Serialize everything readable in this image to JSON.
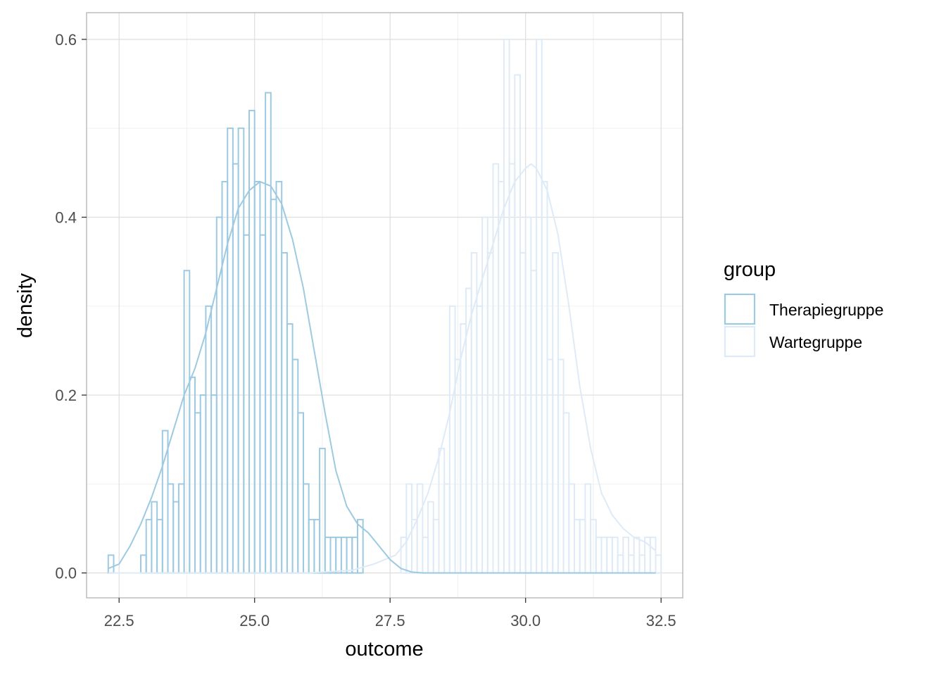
{
  "chart_data": {
    "type": "histogram",
    "xlabel": "outcome",
    "ylabel": "density",
    "xlim": [
      21.9,
      32.9
    ],
    "ylim": [
      -0.028,
      0.63
    ],
    "xticks": [
      22.5,
      25.0,
      27.5,
      30.0,
      32.5
    ],
    "xtick_labels": [
      "22.5",
      "25.0",
      "27.5",
      "30.0",
      "32.5"
    ],
    "yticks": [
      0.0,
      0.2,
      0.4,
      0.6
    ],
    "ytick_labels": [
      "0.0",
      "0.2",
      "0.4",
      "0.6"
    ],
    "grid": true,
    "legend": {
      "title": "group",
      "position": "right"
    },
    "bin_width": 0.1,
    "series": [
      {
        "name": "Therapiegruppe",
        "color": "#9ecae1",
        "bin_start": 22.3,
        "densities": [
          0.02,
          0.0,
          0.0,
          0.0,
          0.0,
          0.0,
          0.02,
          0.06,
          0.08,
          0.06,
          0.16,
          0.1,
          0.08,
          0.1,
          0.34,
          0.22,
          0.18,
          0.2,
          0.3,
          0.2,
          0.4,
          0.44,
          0.5,
          0.46,
          0.5,
          0.38,
          0.52,
          0.44,
          0.38,
          0.54,
          0.42,
          0.44,
          0.36,
          0.28,
          0.24,
          0.18,
          0.1,
          0.06,
          0.06,
          0.14,
          0.04,
          0.04,
          0.04,
          0.04,
          0.04,
          0.04,
          0.06
        ],
        "density_curve": [
          [
            22.3,
            0.005
          ],
          [
            22.5,
            0.01
          ],
          [
            22.7,
            0.03
          ],
          [
            22.9,
            0.055
          ],
          [
            23.1,
            0.085
          ],
          [
            23.3,
            0.12
          ],
          [
            23.5,
            0.16
          ],
          [
            23.7,
            0.2
          ],
          [
            23.9,
            0.23
          ],
          [
            24.1,
            0.27
          ],
          [
            24.3,
            0.32
          ],
          [
            24.5,
            0.37
          ],
          [
            24.7,
            0.41
          ],
          [
            24.9,
            0.43
          ],
          [
            25.1,
            0.44
          ],
          [
            25.3,
            0.435
          ],
          [
            25.5,
            0.415
          ],
          [
            25.7,
            0.375
          ],
          [
            25.9,
            0.32
          ],
          [
            26.1,
            0.25
          ],
          [
            26.3,
            0.18
          ],
          [
            26.5,
            0.115
          ],
          [
            26.7,
            0.075
          ],
          [
            26.9,
            0.055
          ],
          [
            27.1,
            0.045
          ],
          [
            27.3,
            0.03
          ],
          [
            27.5,
            0.015
          ],
          [
            27.7,
            0.005
          ],
          [
            27.9,
            0.001
          ],
          [
            28.1,
            0.0
          ],
          [
            29.0,
            0.0
          ],
          [
            30.0,
            0.0
          ],
          [
            31.0,
            0.0
          ],
          [
            32.0,
            0.0
          ],
          [
            32.4,
            0.0
          ]
        ]
      },
      {
        "name": "Wartegruppe",
        "color": "#deebf7",
        "bin_start": 27.7,
        "densities": [
          0.04,
          0.1,
          0.06,
          0.1,
          0.04,
          0.08,
          0.06,
          0.14,
          0.1,
          0.3,
          0.24,
          0.28,
          0.32,
          0.36,
          0.3,
          0.4,
          0.36,
          0.46,
          0.44,
          0.6,
          0.46,
          0.56,
          0.36,
          0.4,
          0.34,
          0.6,
          0.44,
          0.24,
          0.36,
          0.24,
          0.18,
          0.1,
          0.06,
          0.06,
          0.1,
          0.06,
          0.04,
          0.04,
          0.04,
          0.04,
          0.02,
          0.04,
          0.02,
          0.04,
          0.02,
          0.04,
          0.04,
          0.02
        ],
        "density_curve": [
          [
            22.3,
            0.0
          ],
          [
            24.0,
            0.0
          ],
          [
            26.0,
            0.0
          ],
          [
            26.8,
            0.003
          ],
          [
            27.2,
            0.01
          ],
          [
            27.6,
            0.02
          ],
          [
            27.8,
            0.035
          ],
          [
            28.0,
            0.06
          ],
          [
            28.2,
            0.09
          ],
          [
            28.4,
            0.13
          ],
          [
            28.6,
            0.18
          ],
          [
            28.8,
            0.24
          ],
          [
            29.0,
            0.29
          ],
          [
            29.2,
            0.33
          ],
          [
            29.4,
            0.37
          ],
          [
            29.6,
            0.41
          ],
          [
            29.8,
            0.44
          ],
          [
            30.0,
            0.455
          ],
          [
            30.1,
            0.46
          ],
          [
            30.2,
            0.455
          ],
          [
            30.4,
            0.43
          ],
          [
            30.6,
            0.38
          ],
          [
            30.8,
            0.3
          ],
          [
            31.0,
            0.21
          ],
          [
            31.2,
            0.14
          ],
          [
            31.4,
            0.09
          ],
          [
            31.6,
            0.065
          ],
          [
            31.8,
            0.05
          ],
          [
            32.0,
            0.04
          ],
          [
            32.2,
            0.035
          ],
          [
            32.4,
            0.025
          ]
        ]
      }
    ]
  }
}
